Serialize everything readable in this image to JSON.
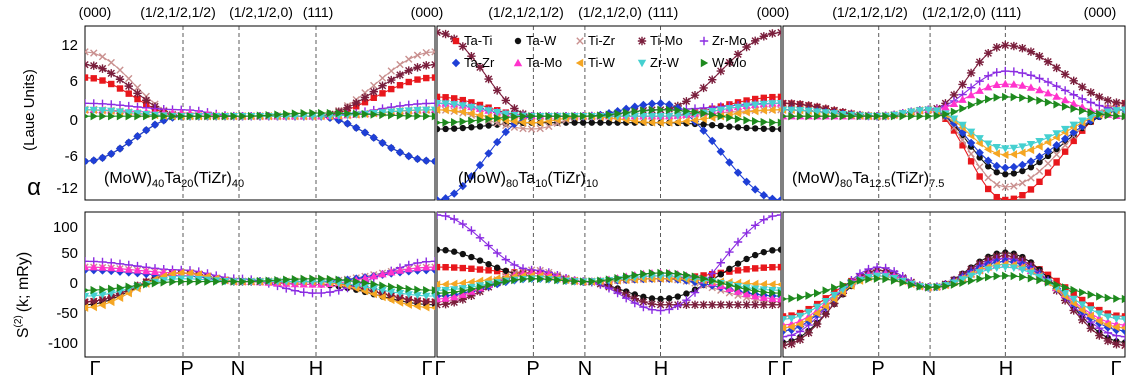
{
  "top_tick_labels": [
    "(000)",
    "(1/2,1/2,1/2)",
    "(1/2,1/2,0)",
    "(111)",
    "(000)"
  ],
  "bottom_tick_labels": [
    "Γ",
    "P",
    "N",
    "H",
    "Γ"
  ],
  "alpha_ylabel": "α",
  "alpha_yunits": "(Laue Units)",
  "s2_ylabel_main": "S",
  "s2_ylabel_sup": "(2)",
  "s2_ylabel_rest": "(k; mRy)",
  "alpha_yticks": [
    "12",
    "6",
    "0",
    "-6",
    "-12"
  ],
  "s2_yticks": [
    "100",
    "50",
    "0",
    "-50",
    "-100"
  ],
  "panel_labels": [
    {
      "part1": "(MoW)",
      "sub1": "40",
      "part2": "Ta",
      "sub2": "20",
      "part3": "(TiZr)",
      "sub3": "40"
    },
    {
      "part1": "(MoW)",
      "sub1": "80",
      "part2": "Ta",
      "sub2": "10",
      "part3": "(TiZr)",
      "sub3": "10"
    },
    {
      "part1": "(MoW)",
      "sub1": "80",
      "part2": "Ta",
      "sub2": "12.5",
      "part3": "(TiZr)",
      "sub3": "7.5"
    }
  ],
  "legend": [
    {
      "name": "Ta-Ti",
      "color": "#e8171c",
      "marker": "square"
    },
    {
      "name": "Ta-W",
      "color": "#111111",
      "marker": "circle"
    },
    {
      "name": "Ti-Zr",
      "color": "#c9908f",
      "marker": "x"
    },
    {
      "name": "Ti-Mo",
      "color": "#7a1e3c",
      "marker": "star"
    },
    {
      "name": "Zr-Mo",
      "color": "#8a2be2",
      "marker": "plus"
    },
    {
      "name": "Ta-Zr",
      "color": "#1f3fd6",
      "marker": "diamond"
    },
    {
      "name": "Ta-Mo",
      "color": "#ff33cc",
      "marker": "triangle-up"
    },
    {
      "name": "Ti-W",
      "color": "#f5a623",
      "marker": "tri-left"
    },
    {
      "name": "Zr-W",
      "color": "#45d0d0",
      "marker": "triangle-down"
    },
    {
      "name": "W-Mo",
      "color": "#1e8a1e",
      "marker": "triangle-right"
    }
  ],
  "chart_data": [
    {
      "type": "line",
      "panel": "alpha-1",
      "ylabel": "α (Laue Units)",
      "ylim": [
        -12,
        15
      ],
      "x": [
        "Γ",
        "P",
        "N",
        "H",
        "Γ"
      ],
      "series": [
        {
          "name": "Ta-Ti",
          "values": [
            7,
            1,
            1,
            1,
            7
          ]
        },
        {
          "name": "Ta-W",
          "values": [
            -6,
            1,
            1,
            1,
            -6
          ]
        },
        {
          "name": "Ti-Zr",
          "values": [
            11,
            1,
            1,
            1,
            11
          ]
        },
        {
          "name": "Ti-Mo",
          "values": [
            9,
            1,
            1,
            1,
            9
          ]
        },
        {
          "name": "Zr-Mo",
          "values": [
            3,
            2,
            1,
            1,
            3
          ]
        },
        {
          "name": "Ta-Zr",
          "values": [
            -6,
            1,
            1,
            1,
            -6
          ]
        },
        {
          "name": "Ta-Mo",
          "values": [
            2,
            1.5,
            1,
            1,
            2
          ]
        },
        {
          "name": "Ti-W",
          "values": [
            2,
            1,
            1,
            1,
            2
          ]
        },
        {
          "name": "Zr-W",
          "values": [
            2,
            1,
            1,
            1,
            2
          ]
        },
        {
          "name": "W-Mo",
          "values": [
            1,
            1,
            1,
            1.5,
            1
          ]
        }
      ]
    },
    {
      "type": "line",
      "panel": "alpha-2",
      "ylabel": "α (Laue Units)",
      "ylim": [
        -12,
        15
      ],
      "x": [
        "Γ",
        "P",
        "N",
        "H",
        "Γ"
      ],
      "series": [
        {
          "name": "Ta-Ti",
          "values": [
            4,
            1,
            1,
            1,
            4
          ]
        },
        {
          "name": "Ta-W",
          "values": [
            -1,
            0,
            0,
            0,
            -1
          ]
        },
        {
          "name": "Ti-Zr",
          "values": [
            2,
            -1,
            1,
            1,
            2
          ]
        },
        {
          "name": "Ti-Mo",
          "values": [
            14,
            1,
            1,
            2,
            14
          ]
        },
        {
          "name": "Zr-Mo",
          "values": [
            3,
            1,
            1,
            2,
            3
          ]
        },
        {
          "name": "Ta-Zr",
          "values": [
            -12,
            1,
            1,
            3,
            -12
          ]
        },
        {
          "name": "Ta-Mo",
          "values": [
            3,
            1,
            1,
            1,
            3
          ]
        },
        {
          "name": "Ti-W",
          "values": [
            2,
            0,
            1,
            0,
            2
          ]
        },
        {
          "name": "Zr-W",
          "values": [
            3,
            1,
            1,
            1,
            3
          ]
        },
        {
          "name": "W-Mo",
          "values": [
            0,
            1,
            1,
            2,
            0
          ]
        }
      ]
    },
    {
      "type": "line",
      "panel": "alpha-3",
      "ylabel": "α (Laue Units)",
      "ylim": [
        -12,
        15
      ],
      "x": [
        "Γ",
        "P",
        "N",
        "H",
        "Γ"
      ],
      "series": [
        {
          "name": "Ta-Ti",
          "values": [
            3,
            1,
            2,
            -12,
            3
          ]
        },
        {
          "name": "Ta-W",
          "values": [
            2,
            1,
            2,
            -8,
            2
          ]
        },
        {
          "name": "Ti-Zr",
          "values": [
            3,
            1,
            2,
            -10,
            3
          ]
        },
        {
          "name": "Ti-Mo",
          "values": [
            3,
            1,
            2,
            12,
            3
          ]
        },
        {
          "name": "Zr-Mo",
          "values": [
            2,
            1,
            2,
            8,
            2
          ]
        },
        {
          "name": "Ta-Zr",
          "values": [
            2,
            1,
            2,
            -7,
            2
          ]
        },
        {
          "name": "Ta-Mo",
          "values": [
            1,
            1,
            2,
            6,
            1
          ]
        },
        {
          "name": "Ti-W",
          "values": [
            2,
            1,
            2,
            -5,
            2
          ]
        },
        {
          "name": "Zr-W",
          "values": [
            2,
            1,
            2,
            -4,
            2
          ]
        },
        {
          "name": "W-Mo",
          "values": [
            1,
            1,
            1,
            4,
            1
          ]
        }
      ]
    },
    {
      "type": "line",
      "panel": "s2-1",
      "ylabel": "S(2)(k; mRy)",
      "ylim": [
        -125,
        125
      ],
      "x": [
        "Γ",
        "P",
        "N",
        "H",
        "Γ"
      ],
      "series": [
        {
          "name": "Ta-Ti",
          "values": [
            -30,
            20,
            5,
            5,
            -30
          ]
        },
        {
          "name": "Ta-W",
          "values": [
            -35,
            20,
            5,
            0,
            -35
          ]
        },
        {
          "name": "Ti-Zr",
          "values": [
            30,
            20,
            5,
            5,
            30
          ]
        },
        {
          "name": "Ti-Mo",
          "values": [
            -30,
            20,
            5,
            5,
            -30
          ]
        },
        {
          "name": "Zr-Mo",
          "values": [
            40,
            25,
            10,
            -15,
            40
          ]
        },
        {
          "name": "Ta-Zr",
          "values": [
            25,
            15,
            5,
            5,
            25
          ]
        },
        {
          "name": "Ta-Mo",
          "values": [
            30,
            20,
            5,
            0,
            30
          ]
        },
        {
          "name": "Ti-W",
          "values": [
            -40,
            20,
            5,
            5,
            -40
          ]
        },
        {
          "name": "Zr-W",
          "values": [
            -20,
            10,
            5,
            5,
            -20
          ]
        },
        {
          "name": "W-Mo",
          "values": [
            -10,
            5,
            5,
            10,
            -10
          ]
        }
      ]
    },
    {
      "type": "line",
      "panel": "s2-2",
      "ylabel": "S(2)(k; mRy)",
      "ylim": [
        -125,
        125
      ],
      "x": [
        "Γ",
        "P",
        "N",
        "H",
        "Γ"
      ],
      "series": [
        {
          "name": "Ta-Ti",
          "values": [
            30,
            20,
            5,
            10,
            30
          ]
        },
        {
          "name": "Ta-W",
          "values": [
            60,
            15,
            5,
            -25,
            60
          ]
        },
        {
          "name": "Ti-Zr",
          "values": [
            -30,
            25,
            5,
            10,
            -30
          ]
        },
        {
          "name": "Ti-Mo",
          "values": [
            -35,
            20,
            5,
            -35,
            -35
          ]
        },
        {
          "name": "Zr-Mo",
          "values": [
            120,
            25,
            5,
            -45,
            120
          ]
        },
        {
          "name": "Ta-Zr",
          "values": [
            -20,
            10,
            5,
            10,
            -20
          ]
        },
        {
          "name": "Ta-Mo",
          "values": [
            -25,
            20,
            5,
            20,
            -25
          ]
        },
        {
          "name": "Ti-W",
          "values": [
            0,
            15,
            5,
            10,
            0
          ]
        },
        {
          "name": "Zr-W",
          "values": [
            -10,
            10,
            5,
            15,
            -10
          ]
        },
        {
          "name": "W-Mo",
          "values": [
            -15,
            10,
            5,
            20,
            -15
          ]
        }
      ]
    },
    {
      "type": "line",
      "panel": "s2-3",
      "ylabel": "S(2)(k; mRy)",
      "ylim": [
        -125,
        125
      ],
      "x": [
        "Γ",
        "P",
        "N",
        "H",
        "Γ"
      ],
      "series": [
        {
          "name": "Ta-Ti",
          "values": [
            -55,
            20,
            -5,
            45,
            -55
          ]
        },
        {
          "name": "Ta-W",
          "values": [
            -100,
            20,
            -5,
            55,
            -100
          ]
        },
        {
          "name": "Ti-Zr",
          "values": [
            -105,
            25,
            -5,
            50,
            -105
          ]
        },
        {
          "name": "Ti-Mo",
          "values": [
            -105,
            25,
            -5,
            50,
            -105
          ]
        },
        {
          "name": "Zr-Mo",
          "values": [
            -90,
            30,
            -5,
            45,
            -90
          ]
        },
        {
          "name": "Ta-Zr",
          "values": [
            -80,
            20,
            -5,
            40,
            -80
          ]
        },
        {
          "name": "Ta-Mo",
          "values": [
            -70,
            20,
            -5,
            35,
            -70
          ]
        },
        {
          "name": "Ti-W",
          "values": [
            -75,
            15,
            -5,
            35,
            -75
          ]
        },
        {
          "name": "Zr-W",
          "values": [
            -60,
            15,
            -5,
            30,
            -60
          ]
        },
        {
          "name": "W-Mo",
          "values": [
            -25,
            10,
            -5,
            15,
            -25
          ]
        }
      ]
    }
  ]
}
